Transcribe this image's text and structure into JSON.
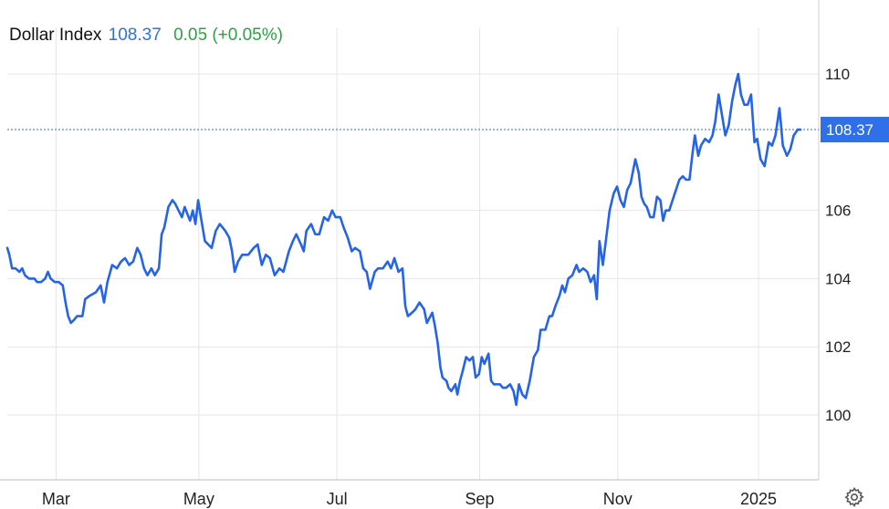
{
  "legend": {
    "name": "Dollar Index",
    "last": "108.37",
    "change": "0.05 (+0.05%)"
  },
  "colors": {
    "line": "#2563eb",
    "up": "#2ea043",
    "grid": "#e6e6e6",
    "badge": "#2f6fe8"
  },
  "settings_icon": "gear-icon",
  "chart_data": {
    "type": "line",
    "title": "",
    "xlabel": "",
    "ylabel": "",
    "ylim": [
      98.1,
      111.1
    ],
    "y_ticks": [
      100,
      102,
      104,
      106,
      110
    ],
    "x_ticks": [
      {
        "label": "Mar",
        "x": 0.72
      },
      {
        "label": "May",
        "x": 2.83
      },
      {
        "label": "Jul",
        "x": 4.87
      },
      {
        "label": "Sep",
        "x": 6.98
      },
      {
        "label": "Nov",
        "x": 9.02
      },
      {
        "label": "2025",
        "x": 11.1
      }
    ],
    "x_unit": "months since 2024-02-08",
    "last_value": 108.37,
    "last_label": "108.37",
    "series": [
      {
        "values": [
          [
            0.0,
            104.9
          ],
          [
            0.03,
            104.7
          ],
          [
            0.07,
            104.3
          ],
          [
            0.12,
            104.3
          ],
          [
            0.18,
            104.2
          ],
          [
            0.22,
            104.3
          ],
          [
            0.26,
            104.1
          ],
          [
            0.32,
            104.0
          ],
          [
            0.4,
            104.0
          ],
          [
            0.44,
            103.9
          ],
          [
            0.5,
            103.9
          ],
          [
            0.56,
            104.0
          ],
          [
            0.6,
            104.2
          ],
          [
            0.64,
            104.0
          ],
          [
            0.7,
            103.9
          ],
          [
            0.76,
            103.9
          ],
          [
            0.82,
            103.8
          ],
          [
            0.86,
            103.3
          ],
          [
            0.9,
            102.9
          ],
          [
            0.94,
            102.7
          ],
          [
            0.99,
            102.8
          ],
          [
            1.03,
            102.9
          ],
          [
            1.07,
            102.9
          ],
          [
            1.11,
            102.9
          ],
          [
            1.15,
            103.4
          ],
          [
            1.22,
            103.5
          ],
          [
            1.31,
            103.6
          ],
          [
            1.38,
            103.8
          ],
          [
            1.43,
            103.3
          ],
          [
            1.48,
            103.9
          ],
          [
            1.55,
            104.4
          ],
          [
            1.62,
            104.3
          ],
          [
            1.68,
            104.5
          ],
          [
            1.74,
            104.6
          ],
          [
            1.8,
            104.4
          ],
          [
            1.86,
            104.5
          ],
          [
            1.92,
            104.9
          ],
          [
            1.97,
            104.7
          ],
          [
            2.02,
            104.3
          ],
          [
            2.07,
            104.1
          ],
          [
            2.13,
            104.3
          ],
          [
            2.18,
            104.1
          ],
          [
            2.24,
            104.3
          ],
          [
            2.28,
            105.3
          ],
          [
            2.32,
            105.5
          ],
          [
            2.38,
            106.1
          ],
          [
            2.44,
            106.3
          ],
          [
            2.48,
            106.2
          ],
          [
            2.53,
            106.0
          ],
          [
            2.58,
            105.8
          ],
          [
            2.62,
            106.1
          ],
          [
            2.66,
            105.9
          ],
          [
            2.7,
            105.7
          ],
          [
            2.74,
            106.0
          ],
          [
            2.78,
            105.6
          ],
          [
            2.82,
            106.3
          ],
          [
            2.86,
            105.8
          ],
          [
            2.92,
            105.1
          ],
          [
            3.02,
            104.9
          ],
          [
            3.08,
            105.4
          ],
          [
            3.14,
            105.6
          ],
          [
            3.22,
            105.4
          ],
          [
            3.28,
            105.2
          ],
          [
            3.32,
            104.8
          ],
          [
            3.36,
            104.2
          ],
          [
            3.41,
            104.5
          ],
          [
            3.47,
            104.7
          ],
          [
            3.56,
            104.7
          ],
          [
            3.64,
            104.9
          ],
          [
            3.7,
            105.0
          ],
          [
            3.76,
            104.4
          ],
          [
            3.82,
            104.7
          ],
          [
            3.88,
            104.6
          ],
          [
            3.95,
            104.1
          ],
          [
            4.02,
            104.3
          ],
          [
            4.08,
            104.2
          ],
          [
            4.16,
            104.8
          ],
          [
            4.22,
            105.1
          ],
          [
            4.27,
            105.3
          ],
          [
            4.34,
            105.0
          ],
          [
            4.38,
            104.8
          ],
          [
            4.42,
            105.4
          ],
          [
            4.49,
            105.6
          ],
          [
            4.55,
            105.3
          ],
          [
            4.61,
            105.3
          ],
          [
            4.68,
            105.8
          ],
          [
            4.74,
            105.7
          ],
          [
            4.8,
            106.0
          ],
          [
            4.85,
            105.8
          ],
          [
            4.92,
            105.8
          ],
          [
            4.97,
            105.5
          ],
          [
            5.03,
            105.2
          ],
          [
            5.09,
            104.8
          ],
          [
            5.14,
            104.9
          ],
          [
            5.21,
            104.8
          ],
          [
            5.26,
            104.3
          ],
          [
            5.31,
            104.2
          ],
          [
            5.36,
            103.7
          ],
          [
            5.43,
            104.2
          ],
          [
            5.48,
            104.3
          ],
          [
            5.55,
            104.3
          ],
          [
            5.62,
            104.5
          ],
          [
            5.67,
            104.3
          ],
          [
            5.72,
            104.6
          ],
          [
            5.78,
            104.2
          ],
          [
            5.84,
            104.3
          ],
          [
            5.88,
            103.2
          ],
          [
            5.92,
            102.9
          ],
          [
            5.98,
            103.0
          ],
          [
            6.03,
            103.1
          ],
          [
            6.09,
            103.3
          ],
          [
            6.16,
            103.1
          ],
          [
            6.2,
            102.7
          ],
          [
            6.28,
            103.0
          ],
          [
            6.32,
            102.6
          ],
          [
            6.36,
            102.1
          ],
          [
            6.4,
            101.4
          ],
          [
            6.43,
            101.1
          ],
          [
            6.49,
            101.0
          ],
          [
            6.52,
            100.8
          ],
          [
            6.56,
            100.7
          ],
          [
            6.62,
            100.9
          ],
          [
            6.65,
            100.6
          ],
          [
            6.69,
            101.0
          ],
          [
            6.73,
            101.3
          ],
          [
            6.78,
            101.7
          ],
          [
            6.83,
            101.6
          ],
          [
            6.88,
            101.7
          ],
          [
            6.92,
            101.1
          ],
          [
            6.97,
            101.2
          ],
          [
            7.01,
            101.7
          ],
          [
            7.05,
            101.5
          ],
          [
            7.11,
            101.8
          ],
          [
            7.15,
            101.0
          ],
          [
            7.19,
            100.9
          ],
          [
            7.24,
            100.9
          ],
          [
            7.28,
            100.9
          ],
          [
            7.32,
            100.8
          ],
          [
            7.37,
            100.8
          ],
          [
            7.43,
            100.9
          ],
          [
            7.48,
            100.7
          ],
          [
            7.52,
            100.3
          ],
          [
            7.56,
            100.9
          ],
          [
            7.61,
            100.6
          ],
          [
            7.66,
            100.5
          ],
          [
            7.72,
            101.0
          ],
          [
            7.78,
            101.7
          ],
          [
            7.84,
            101.9
          ],
          [
            7.88,
            102.5
          ],
          [
            7.95,
            102.5
          ],
          [
            8.01,
            102.9
          ],
          [
            8.05,
            102.9
          ],
          [
            8.1,
            103.2
          ],
          [
            8.16,
            103.5
          ],
          [
            8.2,
            103.8
          ],
          [
            8.24,
            103.6
          ],
          [
            8.29,
            104.0
          ],
          [
            8.35,
            104.1
          ],
          [
            8.41,
            104.4
          ],
          [
            8.45,
            104.2
          ],
          [
            8.51,
            104.3
          ],
          [
            8.57,
            104.2
          ],
          [
            8.62,
            103.9
          ],
          [
            8.67,
            104.1
          ],
          [
            8.71,
            103.4
          ],
          [
            8.75,
            105.1
          ],
          [
            8.8,
            104.4
          ],
          [
            8.85,
            105.2
          ],
          [
            8.9,
            106.0
          ],
          [
            8.96,
            106.5
          ],
          [
            9.01,
            106.7
          ],
          [
            9.06,
            106.3
          ],
          [
            9.11,
            106.1
          ],
          [
            9.16,
            106.6
          ],
          [
            9.21,
            106.8
          ],
          [
            9.28,
            107.5
          ],
          [
            9.33,
            107.1
          ],
          [
            9.37,
            106.4
          ],
          [
            9.41,
            106.2
          ],
          [
            9.45,
            106.1
          ],
          [
            9.5,
            105.8
          ],
          [
            9.55,
            105.8
          ],
          [
            9.6,
            106.4
          ],
          [
            9.65,
            106.3
          ],
          [
            9.69,
            105.7
          ],
          [
            9.73,
            106.0
          ],
          [
            9.78,
            106.0
          ],
          [
            9.83,
            106.3
          ],
          [
            9.88,
            106.6
          ],
          [
            9.93,
            106.9
          ],
          [
            9.98,
            107.0
          ],
          [
            10.03,
            106.9
          ],
          [
            10.08,
            106.9
          ],
          [
            10.12,
            107.6
          ],
          [
            10.16,
            108.2
          ],
          [
            10.21,
            107.6
          ],
          [
            10.25,
            107.9
          ],
          [
            10.31,
            108.1
          ],
          [
            10.37,
            108.0
          ],
          [
            10.42,
            108.2
          ],
          [
            10.46,
            108.6
          ],
          [
            10.51,
            109.4
          ],
          [
            10.56,
            108.8
          ],
          [
            10.61,
            108.2
          ],
          [
            10.66,
            108.5
          ],
          [
            10.71,
            109.2
          ],
          [
            10.76,
            109.7
          ],
          [
            10.8,
            110.0
          ],
          [
            10.84,
            109.4
          ],
          [
            10.89,
            109.1
          ],
          [
            10.94,
            109.1
          ],
          [
            10.99,
            109.4
          ],
          [
            11.04,
            108.0
          ],
          [
            11.08,
            108.1
          ],
          [
            11.13,
            107.5
          ],
          [
            11.19,
            107.3
          ],
          [
            11.25,
            108.0
          ],
          [
            11.3,
            107.9
          ],
          [
            11.35,
            108.2
          ],
          [
            11.41,
            109.0
          ],
          [
            11.46,
            107.9
          ],
          [
            11.52,
            107.6
          ],
          [
            11.57,
            107.8
          ],
          [
            11.62,
            108.2
          ],
          [
            11.68,
            108.37
          ],
          [
            11.72,
            108.37
          ]
        ]
      }
    ]
  }
}
